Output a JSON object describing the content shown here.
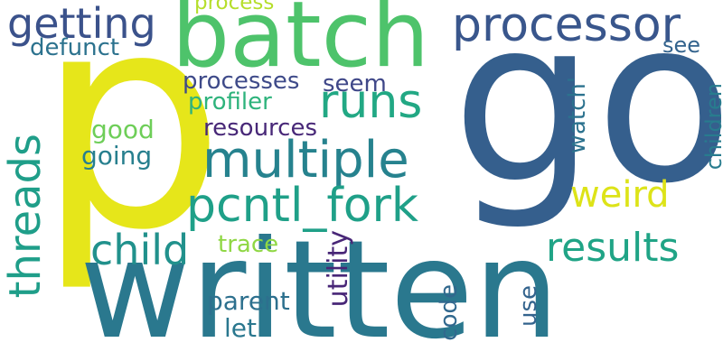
{
  "words": {
    "p": {
      "text": "p",
      "color": "#e6e61a"
    },
    "go": {
      "text": "go",
      "color": "#355f8d"
    },
    "written": {
      "text": "written",
      "color": "#2a788e"
    },
    "batch": {
      "text": "batch",
      "color": "#4ec36b"
    },
    "processor": {
      "text": "processor",
      "color": "#39568c"
    },
    "getting": {
      "text": "getting",
      "color": "#3b528b"
    },
    "multiple": {
      "text": "multiple",
      "color": "#26828e"
    },
    "pcntl_fork": {
      "text": "pcntl_fork",
      "color": "#1fa088"
    },
    "runs": {
      "text": "runs",
      "color": "#22a884"
    },
    "threads": {
      "text": "threads",
      "color": "#1f9e89"
    },
    "child": {
      "text": "child",
      "color": "#21918c"
    },
    "results": {
      "text": "results",
      "color": "#20a486"
    },
    "weird": {
      "text": "weird",
      "color": "#dde318"
    },
    "process": {
      "text": "process",
      "color": "#b5de2b"
    },
    "defunct": {
      "text": "defunct",
      "color": "#2c728e"
    },
    "see": {
      "text": "see",
      "color": "#33638d"
    },
    "processes": {
      "text": "processes",
      "color": "#3e4a89"
    },
    "seem": {
      "text": "seem",
      "color": "#3f4788"
    },
    "profiler": {
      "text": "profiler",
      "color": "#2eb37c"
    },
    "resources": {
      "text": "resources",
      "color": "#482878"
    },
    "good": {
      "text": "good",
      "color": "#6ece58"
    },
    "going": {
      "text": "going",
      "color": "#277f8e"
    },
    "watch": {
      "text": "watch'",
      "color": "#2c728e"
    },
    "children": {
      "text": "children",
      "color": "#287c8e"
    },
    "trace": {
      "text": "trace",
      "color": "#8fd744"
    },
    "utility": {
      "text": "utility",
      "color": "#482677"
    },
    "parent": {
      "text": "parent",
      "color": "#2d708e"
    },
    "let": {
      "text": "let",
      "color": "#2a778e"
    },
    "code": {
      "text": "code",
      "color": "#31688e"
    },
    "use": {
      "text": "use",
      "color": "#33638d"
    }
  }
}
